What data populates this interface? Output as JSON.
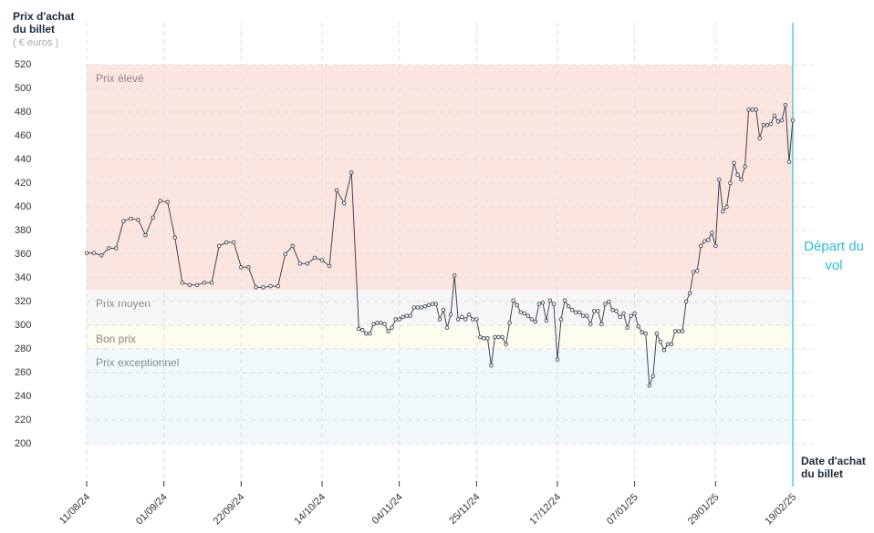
{
  "chart_data": {
    "type": "line",
    "y_label": "Prix d'achat du billet",
    "y_unit": "( € euros )",
    "x_label": "Date d'achat du billet",
    "marker_label": "Départ du vol",
    "marker_x": "19/02/25",
    "marker_color": "#2bc0d8",
    "ylim": [
      200,
      520
    ],
    "yticks": [
      200,
      220,
      240,
      260,
      280,
      300,
      320,
      340,
      360,
      380,
      400,
      420,
      440,
      460,
      480,
      500,
      520
    ],
    "xlim": [
      "11/08/24",
      "19/02/25"
    ],
    "xticks": [
      "11/08/24",
      "01/09/24",
      "22/09/24",
      "14/10/24",
      "04/11/24",
      "25/11/24",
      "17/12/24",
      "07/01/25",
      "29/01/25",
      "19/02/25"
    ],
    "grid": true,
    "zones": [
      {
        "label": "Prix élevé",
        "from": 330,
        "to": 520,
        "color": "#fde5df"
      },
      {
        "label": "Prix moyen",
        "from": 300,
        "to": 330,
        "color": "#f6f6f6"
      },
      {
        "label": "Bon prix",
        "from": 280,
        "to": 300,
        "color": "#fcfcef"
      },
      {
        "label": "Prix exceptionnel",
        "from": 200,
        "to": 280,
        "color": "#f2f9fc"
      }
    ],
    "series": [
      {
        "color": "#3d4557",
        "x": [
          "11/08/24",
          "13/08/24",
          "15/08/24",
          "17/08/24",
          "19/08/24",
          "21/08/24",
          "23/08/24",
          "25/08/24",
          "27/08/24",
          "29/08/24",
          "31/08/24",
          "02/09/24",
          "04/09/24",
          "06/09/24",
          "08/09/24",
          "10/09/24",
          "12/09/24",
          "14/09/24",
          "16/09/24",
          "18/09/24",
          "20/09/24",
          "22/09/24",
          "24/09/24",
          "26/09/24",
          "28/09/24",
          "30/09/24",
          "02/10/24",
          "04/10/24",
          "06/10/24",
          "08/10/24",
          "10/10/24",
          "12/10/24",
          "14/10/24",
          "16/10/24",
          "18/10/24",
          "20/10/24",
          "22/10/24",
          "24/10/24",
          "25/10/24",
          "26/10/24",
          "27/10/24",
          "28/10/24",
          "29/10/24",
          "30/10/24",
          "31/10/24",
          "01/11/24",
          "02/11/24",
          "03/11/24",
          "04/11/24",
          "05/11/24",
          "06/11/24",
          "07/11/24",
          "08/11/24",
          "09/11/24",
          "10/11/24",
          "11/11/24",
          "12/11/24",
          "13/11/24",
          "14/11/24",
          "15/11/24",
          "16/11/24",
          "17/11/24",
          "18/11/24",
          "19/11/24",
          "20/11/24",
          "21/11/24",
          "22/11/24",
          "23/11/24",
          "24/11/24",
          "25/11/24",
          "26/11/24",
          "27/11/24",
          "28/11/24",
          "29/11/24",
          "30/11/24",
          "01/12/24",
          "02/12/24",
          "03/12/24",
          "04/12/24",
          "05/12/24",
          "06/12/24",
          "07/12/24",
          "08/12/24",
          "09/12/24",
          "10/12/24",
          "11/12/24",
          "12/12/24",
          "13/12/24",
          "14/12/24",
          "15/12/24",
          "16/12/24",
          "17/12/24",
          "18/12/24",
          "19/12/24",
          "20/12/24",
          "21/12/24",
          "22/12/24",
          "23/12/24",
          "24/12/24",
          "25/12/24",
          "26/12/24",
          "27/12/24",
          "28/12/24",
          "29/12/24",
          "30/12/24",
          "31/12/24",
          "01/01/25",
          "02/01/25",
          "03/01/25",
          "04/01/25",
          "05/01/25",
          "06/01/25",
          "07/01/25",
          "08/01/25",
          "09/01/25",
          "10/01/25",
          "11/01/25",
          "12/01/25",
          "13/01/25",
          "14/01/25",
          "15/01/25",
          "16/01/25",
          "17/01/25",
          "18/01/25",
          "19/01/25",
          "20/01/25",
          "21/01/25",
          "22/01/25",
          "23/01/25",
          "24/01/25",
          "25/01/25",
          "26/01/25",
          "27/01/25",
          "28/01/25",
          "29/01/25",
          "30/01/25",
          "31/01/25",
          "01/02/25",
          "02/02/25",
          "03/02/25",
          "04/02/25",
          "05/02/25",
          "06/02/25",
          "07/02/25",
          "08/02/25",
          "09/02/25",
          "10/02/25",
          "11/02/25",
          "12/02/25",
          "13/02/25",
          "14/02/25",
          "15/02/25",
          "16/02/25",
          "17/02/25",
          "18/02/25",
          "19/02/25"
        ],
        "values": [
          361,
          361,
          359,
          365,
          365,
          388,
          390,
          389,
          376,
          391,
          405,
          404,
          374,
          336,
          334,
          334,
          336,
          336,
          367,
          370,
          370,
          349,
          349,
          332,
          332,
          333,
          333,
          360,
          367,
          352,
          352,
          357,
          355,
          350,
          414,
          403,
          429,
          297,
          296,
          293,
          293,
          301,
          302,
          302,
          301,
          295,
          298,
          305,
          305,
          307,
          308,
          308,
          315,
          315,
          315,
          316,
          317,
          318,
          318,
          305,
          313,
          298,
          309,
          342,
          305,
          307,
          305,
          309,
          305,
          305,
          290,
          289,
          289,
          266,
          290,
          290,
          290,
          284,
          302,
          321,
          317,
          311,
          310,
          308,
          305,
          303,
          318,
          319,
          304,
          321,
          318,
          271,
          305,
          321,
          316,
          313,
          311,
          311,
          308,
          308,
          301,
          312,
          312,
          301,
          318,
          320,
          313,
          312,
          307,
          310,
          298,
          308,
          310,
          299,
          294,
          293,
          249,
          257,
          293,
          286,
          279,
          284,
          284,
          295,
          295,
          295,
          320,
          327,
          345,
          346,
          367,
          371,
          372,
          378,
          367,
          423,
          396,
          400,
          420,
          437,
          427,
          423,
          434,
          482,
          482,
          482,
          458,
          469,
          469,
          470,
          477,
          472,
          473,
          486,
          438,
          473
        ]
      }
    ]
  }
}
